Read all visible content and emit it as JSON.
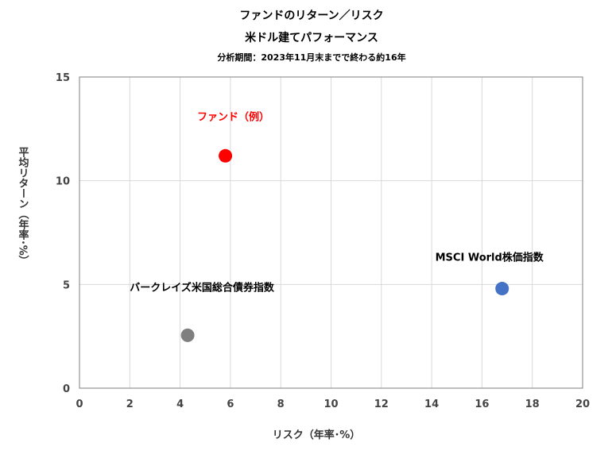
{
  "chart_data": {
    "type": "scatter",
    "title": "ファンドのリターン／リスク",
    "title2": "米ドル建てパフォーマンス",
    "subtitle": "分析期間：2023年11月末までで終わる約16年",
    "xlabel": "リスク（年率･%）",
    "ylabel": "平均リターン（年率･%）",
    "xlim": [
      0,
      20
    ],
    "ylim": [
      0,
      15
    ],
    "xticks": [
      0,
      2,
      4,
      6,
      8,
      10,
      12,
      14,
      16,
      18,
      20
    ],
    "yticks": [
      0,
      5,
      10,
      15
    ],
    "grid": true,
    "legend": "none",
    "points": [
      {
        "label": "ファンド（例）",
        "x": 5.8,
        "y": 11.2,
        "color": "#ff0000",
        "label_color": "#ff0000"
      },
      {
        "label": "MSCI World株価指数",
        "x": 16.8,
        "y": 4.8,
        "color": "#4472c4",
        "label_color": "#000000"
      },
      {
        "label": "バークレイズ米国総合債券指数",
        "x": 4.3,
        "y": 2.55,
        "color": "#7f7f7f",
        "label_color": "#000000"
      }
    ]
  }
}
